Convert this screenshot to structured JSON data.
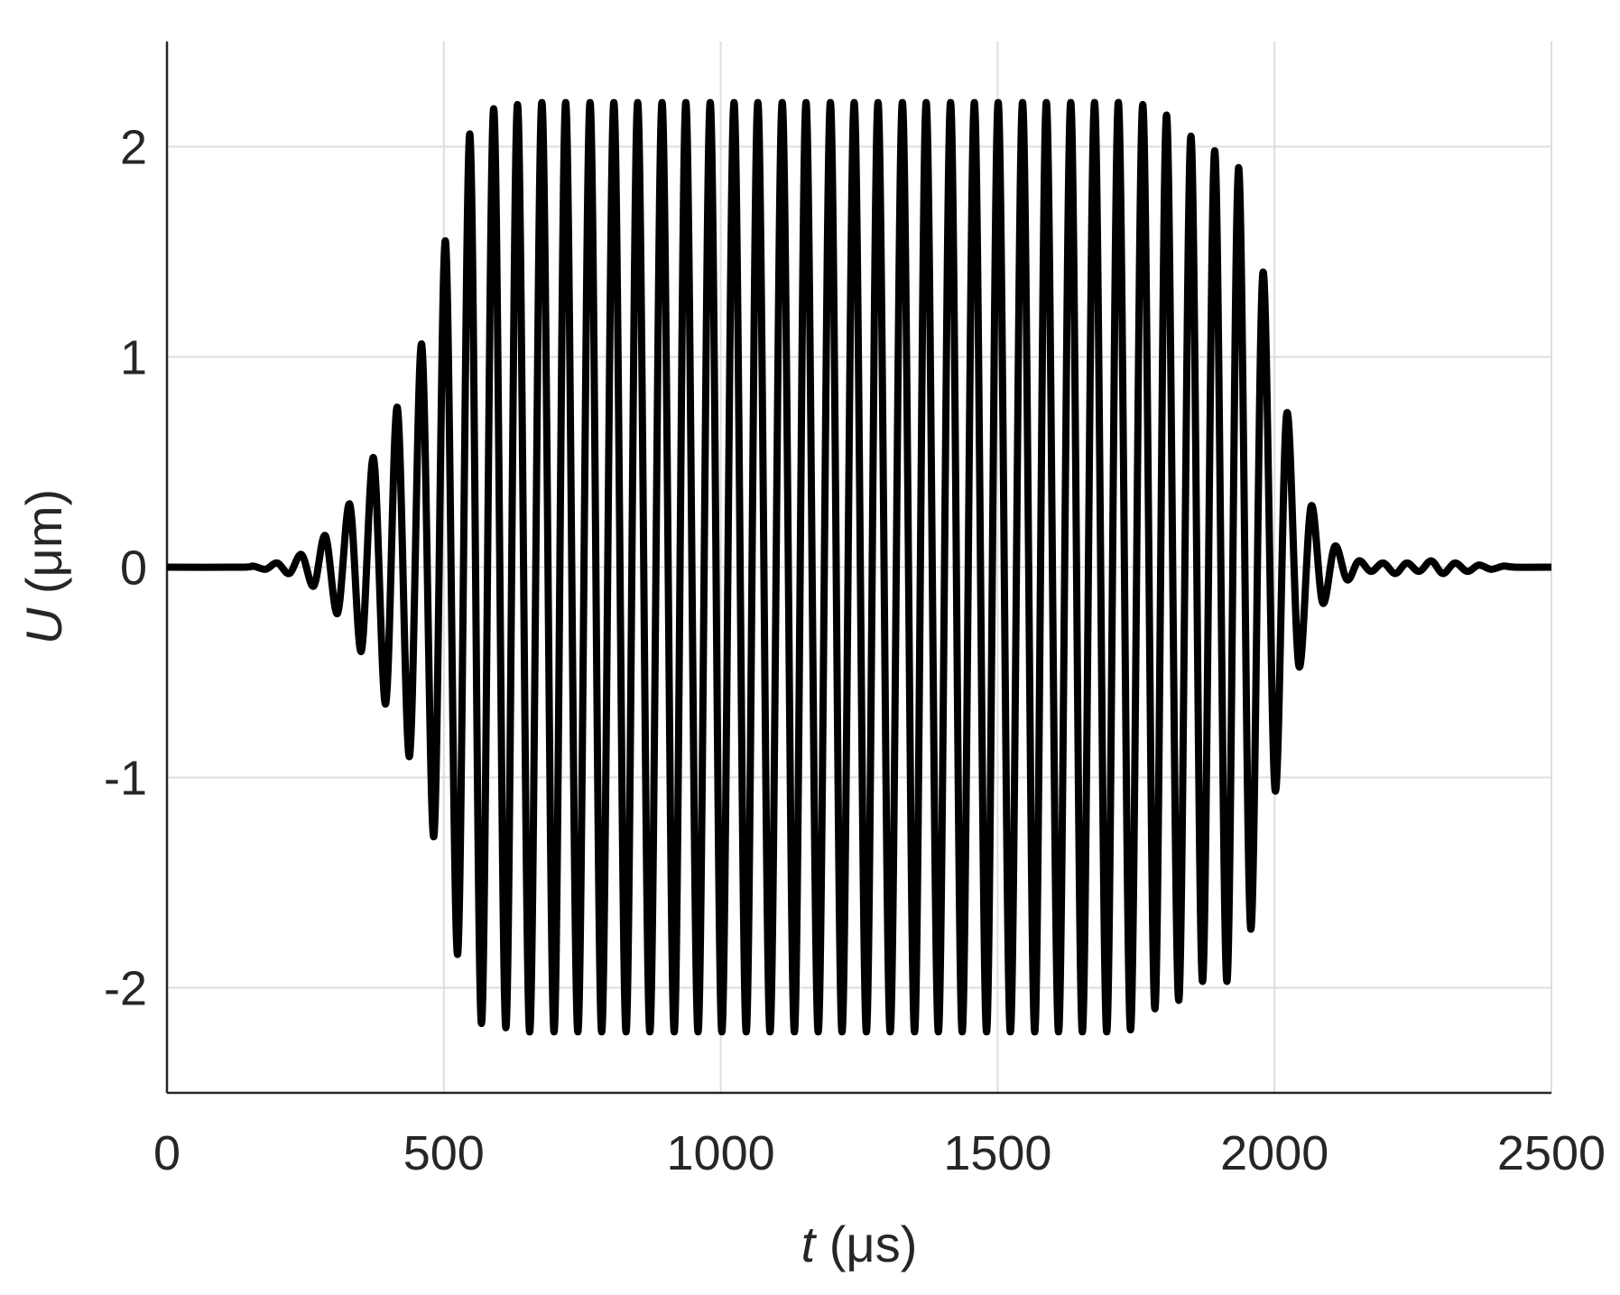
{
  "chart_data": {
    "type": "line",
    "x_label": {
      "symbol": "t",
      "unit": "(μs)"
    },
    "y_label": {
      "symbol": "U",
      "unit": "(μm)"
    },
    "xlim": [
      0,
      2500
    ],
    "ylim": [
      -2.5,
      2.5
    ],
    "xticks": [
      0,
      500,
      1000,
      1500,
      2000,
      2500
    ],
    "yticks": [
      -2,
      -1,
      0,
      1,
      2
    ],
    "grid": true,
    "series": [
      {
        "color": "#000000",
        "x": [
          0,
          135,
          156,
          178,
          199,
          221,
          243,
          265,
          286,
          308,
          330,
          351,
          373,
          395,
          416,
          438,
          460,
          482,
          503,
          525,
          547,
          568,
          590,
          612,
          633,
          655,
          677,
          699,
          720,
          742,
          764,
          785,
          807,
          829,
          850,
          872,
          894,
          916,
          937,
          959,
          981,
          1002,
          1024,
          1046,
          1067,
          1089,
          1111,
          1133,
          1154,
          1176,
          1198,
          1219,
          1241,
          1263,
          1284,
          1306,
          1328,
          1350,
          1371,
          1393,
          1415,
          1436,
          1458,
          1480,
          1501,
          1523,
          1545,
          1567,
          1588,
          1610,
          1632,
          1653,
          1675,
          1697,
          1718,
          1740,
          1762,
          1784,
          1805,
          1827,
          1849,
          1870,
          1892,
          1914,
          1935,
          1957,
          1979,
          2001,
          2022,
          2044,
          2066,
          2087,
          2109,
          2131,
          2152,
          2174,
          2196,
          2218,
          2239,
          2261,
          2283,
          2304,
          2326,
          2348,
          2369,
          2391,
          2413,
          2435,
          2500
        ],
        "values": [
          0,
          0,
          0.005,
          -0.01,
          0.02,
          -0.03,
          0.06,
          -0.09,
          0.15,
          -0.22,
          0.3,
          -0.4,
          0.52,
          -0.65,
          0.76,
          -0.9,
          1.06,
          -1.28,
          1.55,
          -1.84,
          2.06,
          -2.17,
          2.18,
          -2.19,
          2.2,
          -2.21,
          2.21,
          -2.21,
          2.21,
          -2.21,
          2.21,
          -2.21,
          2.21,
          -2.21,
          2.21,
          -2.21,
          2.21,
          -2.21,
          2.21,
          -2.21,
          2.21,
          -2.21,
          2.21,
          -2.21,
          2.21,
          -2.21,
          2.21,
          -2.21,
          2.21,
          -2.21,
          2.21,
          -2.21,
          2.21,
          -2.21,
          2.21,
          -2.21,
          2.21,
          -2.21,
          2.21,
          -2.21,
          2.21,
          -2.21,
          2.21,
          -2.21,
          2.21,
          -2.21,
          2.21,
          -2.21,
          2.21,
          -2.21,
          2.21,
          -2.21,
          2.21,
          -2.21,
          2.21,
          -2.2,
          2.2,
          -2.1,
          2.15,
          -2.06,
          2.05,
          -1.97,
          1.98,
          -1.97,
          1.9,
          -1.72,
          1.4,
          -1.06,
          0.73,
          -0.47,
          0.29,
          -0.17,
          0.1,
          -0.06,
          0.03,
          -0.02,
          0.02,
          -0.03,
          0.02,
          -0.02,
          0.03,
          -0.03,
          0.02,
          -0.02,
          0.01,
          -0.01,
          0.005,
          0,
          0
        ]
      }
    ]
  }
}
